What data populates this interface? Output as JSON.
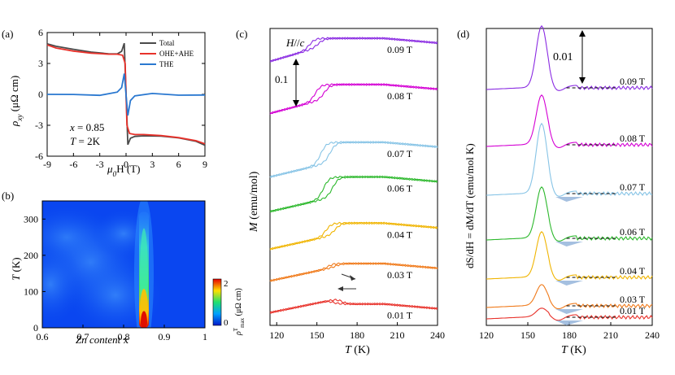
{
  "panels": {
    "a": {
      "label": "(a)"
    },
    "b": {
      "label": "(b)"
    },
    "c": {
      "label": "(c)"
    },
    "d": {
      "label": "(d)"
    }
  },
  "chart_data": [
    {
      "id": "a",
      "type": "line",
      "xlabel_parts": [
        "μ",
        "0",
        "H (T)"
      ],
      "ylabel_parts": [
        "ρ",
        "xy",
        " (μΩ cm)"
      ],
      "xlim": [
        -9,
        9
      ],
      "ylim": [
        -6,
        6
      ],
      "xticks": [
        -9,
        -6,
        -3,
        0,
        3,
        6,
        9
      ],
      "yticks": [
        -6,
        -3,
        0,
        3,
        6
      ],
      "legend": [
        "Total",
        "OHE+AHE",
        "THE"
      ],
      "legend_colors": [
        "#4a4a4a",
        "#e8322b",
        "#2a78d0"
      ],
      "annotation": [
        "x = 0.85",
        "T = 2K"
      ],
      "series": [
        {
          "name": "Total",
          "color": "#4a4a4a",
          "x": [
            -9,
            -8,
            -6,
            -4,
            -2,
            -1,
            -0.5,
            -0.2,
            0,
            0.2,
            0.5,
            1,
            2,
            4,
            6,
            8,
            9
          ],
          "y": [
            4.9,
            4.6,
            4.3,
            4.1,
            4.0,
            4.0,
            4.2,
            4.9,
            0,
            -4.9,
            -4.2,
            -4.0,
            -4.0,
            -4.1,
            -4.3,
            -4.6,
            -4.9
          ]
        },
        {
          "name": "OHE+AHE",
          "color": "#e8322b",
          "x": [
            -9,
            -8,
            -6,
            -4,
            -2,
            -1,
            -0.4,
            -0.1,
            0,
            0.1,
            0.4,
            1,
            2,
            4,
            6,
            8,
            9
          ],
          "y": [
            4.8,
            4.5,
            4.2,
            4.0,
            3.9,
            3.9,
            3.8,
            3.0,
            0,
            -3.0,
            -3.8,
            -3.9,
            -3.9,
            -4.0,
            -4.2,
            -4.5,
            -4.8
          ]
        },
        {
          "name": "THE",
          "color": "#2a78d0",
          "x": [
            -9,
            -6,
            -3,
            -1,
            -0.5,
            -0.2,
            0,
            0.2,
            0.5,
            1,
            3,
            6,
            9
          ],
          "y": [
            0,
            0.05,
            -0.05,
            0.2,
            0.6,
            2.0,
            0,
            -2.0,
            -0.6,
            -0.2,
            0.05,
            -0.05,
            0
          ]
        }
      ]
    },
    {
      "id": "b",
      "type": "heatmap",
      "xlabel_parts": [
        "Zn content ",
        "x"
      ],
      "ylabel_parts": [
        "T",
        " (K)"
      ],
      "xlim": [
        0.6,
        1.0
      ],
      "ylim": [
        0,
        350
      ],
      "xticks": [
        0.6,
        0.7,
        0.8,
        0.9,
        1
      ],
      "yticks": [
        0,
        100,
        200,
        300
      ],
      "colorbar": {
        "min": 0,
        "max": 2,
        "ticks": [
          "0",
          "2"
        ],
        "label_parts": [
          "ρ",
          "T",
          "max",
          " (μΩ cm)"
        ]
      },
      "hotspot": {
        "x": 0.85,
        "T_top": 320,
        "peak_T": 60
      }
    },
    {
      "id": "c",
      "type": "line",
      "xlabel_parts": [
        "T",
        " (K)"
      ],
      "ylabel_parts": [
        "M",
        " (emu/mol)"
      ],
      "xlim": [
        115,
        240
      ],
      "xticks": [
        120,
        150,
        180,
        210,
        240
      ],
      "annotation_title": [
        "H",
        "//",
        "c"
      ],
      "scale_bar": "0.1",
      "series": [
        {
          "name": "0.09 T",
          "color": "#8a2be2",
          "label": "0.09 T",
          "onset": 152,
          "base": 0.9,
          "plateau": 0.98
        },
        {
          "name": "0.08 T",
          "color": "#d400d4",
          "label": "0.08 T",
          "onset": 156,
          "base": 0.72,
          "plateau": 0.82
        },
        {
          "name": "0.07 T",
          "color": "#87c4e6",
          "label": "0.07 T",
          "onset": 160,
          "base": 0.5,
          "plateau": 0.62
        },
        {
          "name": "0.06 T",
          "color": "#2cb82c",
          "label": "0.06 T",
          "onset": 162,
          "base": 0.38,
          "plateau": 0.5
        },
        {
          "name": "0.04 T",
          "color": "#f0b400",
          "label": "0.04 T",
          "onset": 164,
          "base": 0.25,
          "plateau": 0.34
        },
        {
          "name": "0.03 T",
          "color": "#f07a1a",
          "label": "0.03 T",
          "onset": 166,
          "base": 0.14,
          "plateau": 0.2
        },
        {
          "name": "0.01 T",
          "color": "#e8322b",
          "label": "0.01 T",
          "onset": 168,
          "base": 0.03,
          "plateau": 0.06
        }
      ]
    },
    {
      "id": "d",
      "type": "line",
      "xlabel_parts": [
        "T",
        " (K)"
      ],
      "ylabel_parts": [
        "dS/dH = dM/dT (emu/mol K)"
      ],
      "xlim": [
        120,
        240
      ],
      "xticks": [
        120,
        150,
        180,
        210,
        240
      ],
      "scale_bar": "0.01",
      "series": [
        {
          "name": "0.09 T",
          "color": "#8a2be2",
          "label": "0.09 T"
        },
        {
          "name": "0.08 T",
          "color": "#d400d4",
          "label": "0.08 T"
        },
        {
          "name": "0.07 T",
          "color": "#87c4e6",
          "label": "0.07 T"
        },
        {
          "name": "0.06 T",
          "color": "#2cb82c",
          "label": "0.06 T"
        },
        {
          "name": "0.04 T",
          "color": "#f0b400",
          "label": "0.04 T"
        },
        {
          "name": "0.03 T",
          "color": "#f07a1a",
          "label": "0.03 T"
        },
        {
          "name": "0.01 T",
          "color": "#e8322b",
          "label": "0.01 T"
        }
      ]
    }
  ]
}
